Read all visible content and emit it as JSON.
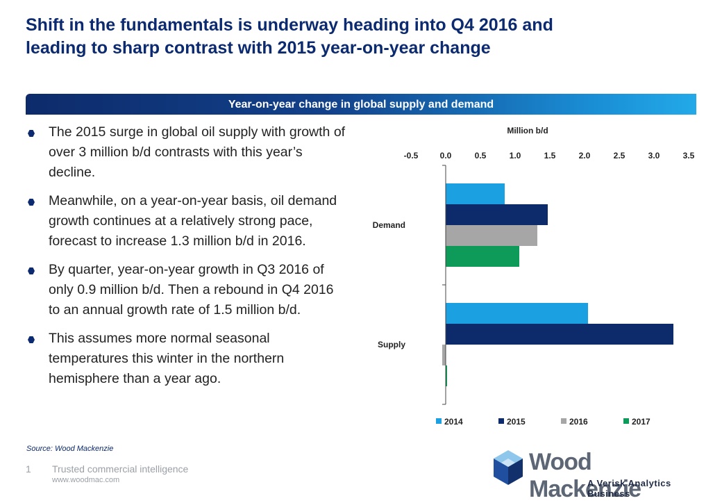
{
  "header": {
    "title_line1": "Shift in the fundamentals is underway heading into Q4 2016 and",
    "title_line2": "leading to sharp contrast with 2015 year-on-year change"
  },
  "banner": {
    "label": "Year-on-year change in global supply and demand"
  },
  "bullets": [
    {
      "text": "The 2015 surge in global oil supply with growth of over 3 million b/d contrasts with this year’s decline."
    },
    {
      "text": "Meanwhile, on a year-on-year basis, oil demand growth continues at a relatively strong pace, forecast to increase 1.3 million b/d in 2016."
    },
    {
      "text": "By quarter, year-on-year growth in Q3 2016 of only 0.9 million b/d. Then a rebound in Q4 2016 to an annual growth rate of 1.5 million b/d."
    },
    {
      "text": "This assumes more normal seasonal temperatures this winter in the northern hemisphere than a year ago."
    }
  ],
  "footer": {
    "source": "Source: Wood Mackenzie",
    "page_number": "1",
    "tagline": "Trusted commercial intelligence",
    "url": "www.woodmac.com"
  },
  "logo": {
    "name": "Wood Mackenzie",
    "subtitle": "A Verisk Analytics Business"
  },
  "chart_data": {
    "type": "bar",
    "orientation": "horizontal",
    "xlabel": "Million b/d",
    "xlim": [
      -0.5,
      3.5
    ],
    "ticks": [
      "-0.5",
      "0.0",
      "0.5",
      "1.0",
      "1.5",
      "2.0",
      "2.5",
      "3.0",
      "3.5"
    ],
    "tick_values": [
      -0.5,
      0,
      0.5,
      1.0,
      1.5,
      2.0,
      2.5,
      3.0,
      3.5
    ],
    "axis_position": "top",
    "categories": [
      "Demand",
      "Supply"
    ],
    "series": [
      {
        "name": "2014",
        "color": "#1ba1e2",
        "values": [
          0.85,
          2.05
        ]
      },
      {
        "name": "2015",
        "color": "#0d2b6b",
        "values": [
          1.47,
          3.28
        ]
      },
      {
        "name": "2016",
        "color": "#a6a6a6",
        "values": [
          1.32,
          -0.05
        ]
      },
      {
        "name": "2017",
        "color": "#0e9a58",
        "values": [
          1.06,
          0.02
        ]
      }
    ],
    "legend_position": "bottom",
    "grid": false
  }
}
